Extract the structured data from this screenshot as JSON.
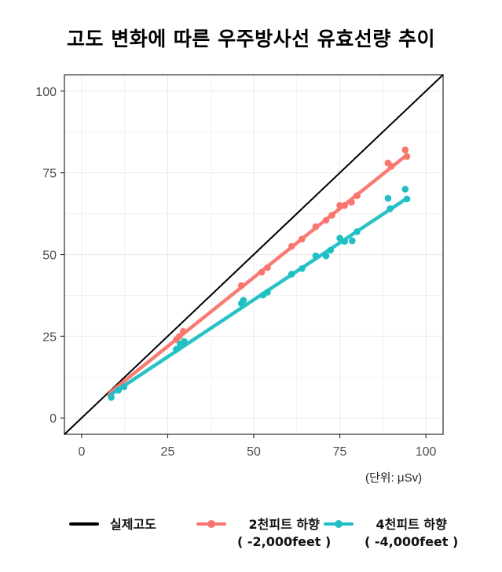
{
  "title": "고도 변화에 따른 우주방사선 유효선량 추이",
  "unit_label": "(단위: μSv)",
  "colors": {
    "reference": "#000000",
    "series_2000": "#f8766d",
    "series_4000": "#1fbfc4",
    "grid": "#ebebeb",
    "axis": "#555555"
  },
  "legend": {
    "items": [
      {
        "label": "실제고도",
        "sub": ""
      },
      {
        "label": "2천피트 하향",
        "sub": "( -2,000feet )"
      },
      {
        "label": "4천피트 하향",
        "sub": "( -4,000feet )"
      }
    ]
  },
  "chart_data": {
    "type": "scatter",
    "title": "고도 변화에 따른 우주방사선 유효선량 추이",
    "xlabel": "",
    "ylabel": "",
    "unit": "μSv",
    "xlim": [
      -5,
      105
    ],
    "ylim": [
      -5,
      105
    ],
    "xticks": [
      0,
      25,
      50,
      75,
      100
    ],
    "yticks": [
      0,
      25,
      50,
      75,
      100
    ],
    "grid": true,
    "legend_position": "bottom",
    "reference_line": {
      "name": "실제고도",
      "type": "y=x",
      "from": [
        -5,
        -5
      ],
      "to": [
        105,
        105
      ]
    },
    "series": [
      {
        "name": "2천피트 하향 (-2,000feet)",
        "fit": {
          "from": [
            8.5,
            8.0
          ],
          "to": [
            94.5,
            80.5
          ]
        },
        "points": [
          [
            8.4,
            7.0
          ],
          [
            10.5,
            9.0
          ],
          [
            11.8,
            9.8
          ],
          [
            27.5,
            24.0
          ],
          [
            28.4,
            25.0
          ],
          [
            29.5,
            26.5
          ],
          [
            46.4,
            40.5
          ],
          [
            52.3,
            44.6
          ],
          [
            54.0,
            46.0
          ],
          [
            61.0,
            52.5
          ],
          [
            64.0,
            54.7
          ],
          [
            68.0,
            58.5
          ],
          [
            71.0,
            60.5
          ],
          [
            72.7,
            62.0
          ],
          [
            75.0,
            65.0
          ],
          [
            76.4,
            65.0
          ],
          [
            78.4,
            66.0
          ],
          [
            80.0,
            68.0
          ],
          [
            89.0,
            78.0
          ],
          [
            90.0,
            77.0
          ],
          [
            94.0,
            82.0
          ],
          [
            94.5,
            80.0
          ]
        ]
      },
      {
        "name": "4천피트 하향 (-4,000feet)",
        "fit": {
          "from": [
            8.5,
            7.2
          ],
          "to": [
            94.5,
            67.2
          ]
        },
        "points": [
          [
            8.6,
            6.3
          ],
          [
            10.7,
            8.5
          ],
          [
            12.3,
            9.5
          ],
          [
            27.5,
            21.0
          ],
          [
            28.6,
            22.6
          ],
          [
            29.8,
            23.4
          ],
          [
            46.4,
            35.0
          ],
          [
            47.0,
            36.0
          ],
          [
            52.7,
            37.6
          ],
          [
            54.0,
            38.5
          ],
          [
            61.0,
            44.0
          ],
          [
            64.0,
            45.7
          ],
          [
            68.0,
            49.6
          ],
          [
            71.0,
            49.6
          ],
          [
            72.3,
            51.3
          ],
          [
            75.0,
            55.0
          ],
          [
            76.4,
            54.0
          ],
          [
            78.6,
            54.2
          ],
          [
            80.0,
            57.0
          ],
          [
            89.0,
            67.2
          ],
          [
            89.6,
            64.0
          ],
          [
            94.0,
            70.0
          ],
          [
            94.5,
            67.0
          ]
        ]
      }
    ]
  }
}
